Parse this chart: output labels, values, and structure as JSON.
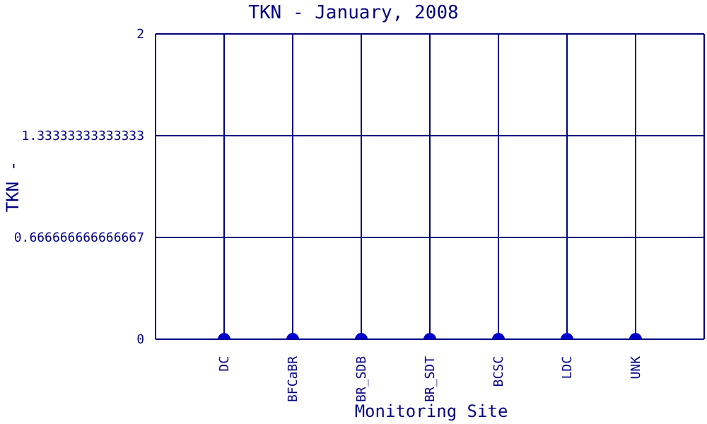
{
  "chart_data": {
    "type": "scatter",
    "title": "TKN - January, 2008",
    "xlabel": "Monitoring Site",
    "ylabel": "TKN -",
    "categories": [
      "DC",
      "BFCaBR",
      "BR_SDB",
      "BR_SDT",
      "BCSC",
      "LDC",
      "UNK"
    ],
    "series": [
      {
        "color": "#0000cc",
        "values": [
          0,
          0,
          0,
          0,
          0,
          0,
          0
        ]
      }
    ],
    "ylim": [
      0,
      2
    ],
    "yticks": [
      0,
      {
        "value": 0.666666666666667,
        "label": "0.666666666666667"
      },
      {
        "value": 1.33333333333333,
        "label": "1.33333333333333"
      },
      2
    ],
    "grid": true,
    "marker": "circle",
    "legend": false
  }
}
